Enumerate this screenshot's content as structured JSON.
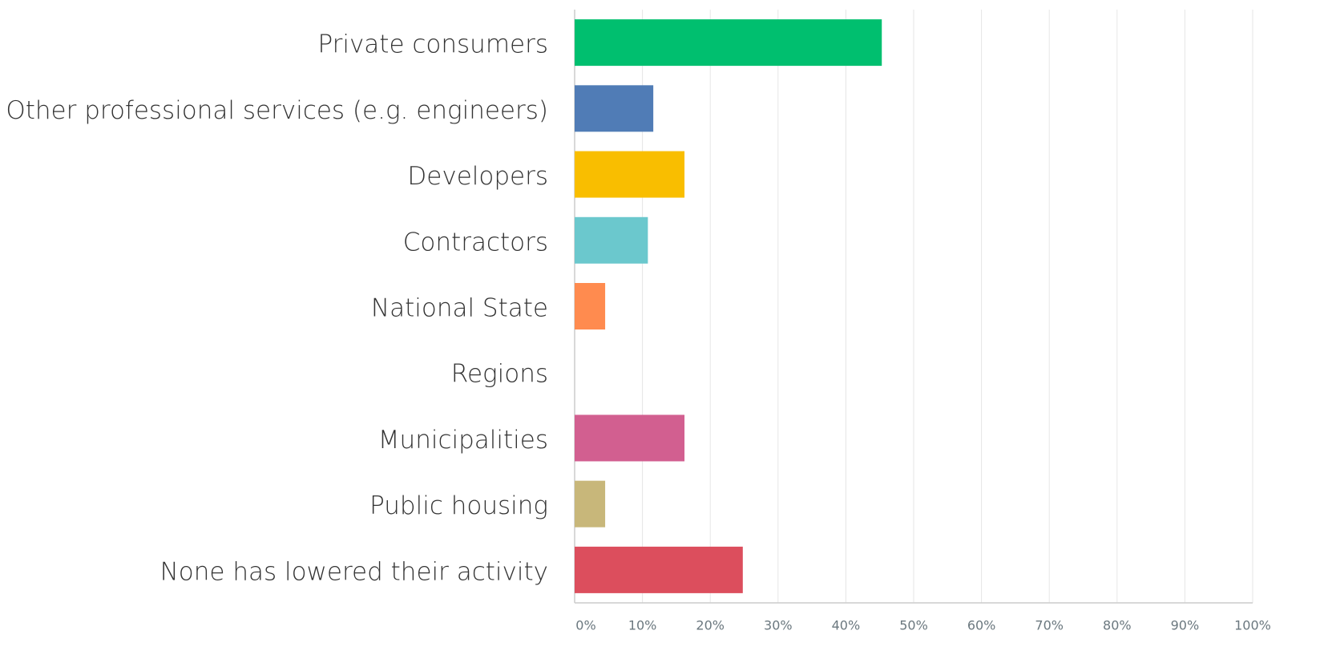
{
  "chart_data": {
    "type": "hbar",
    "categories": [
      "Private consumers",
      "Other professional services (e.g. engineers)",
      "Developers",
      "Contractors",
      "National State",
      "Regions",
      "Municipalities",
      "Public housing",
      "None has lowered their activity"
    ],
    "values": [
      45.3,
      11.6,
      16.2,
      10.8,
      4.5,
      0,
      16.2,
      4.5,
      24.8
    ],
    "colors": [
      "#00bf6f",
      "#507cb6",
      "#f9be00",
      "#6bc8cd",
      "#ff8b4f",
      "#7f7f7f",
      "#d25f90",
      "#c8b77a",
      "#dc4e5d"
    ],
    "xlim": [
      0,
      100
    ],
    "xticks": [
      {
        "value": 0,
        "label": "0%"
      },
      {
        "value": 10,
        "label": "10%"
      },
      {
        "value": 20,
        "label": "20%"
      },
      {
        "value": 30,
        "label": "30%"
      },
      {
        "value": 40,
        "label": "40%"
      },
      {
        "value": 50,
        "label": "50%"
      },
      {
        "value": 60,
        "label": "60%"
      },
      {
        "value": 70,
        "label": "70%"
      },
      {
        "value": 80,
        "label": "80%"
      },
      {
        "value": 90,
        "label": "90%"
      },
      {
        "value": 100,
        "label": "100%"
      }
    ],
    "grid": true
  }
}
